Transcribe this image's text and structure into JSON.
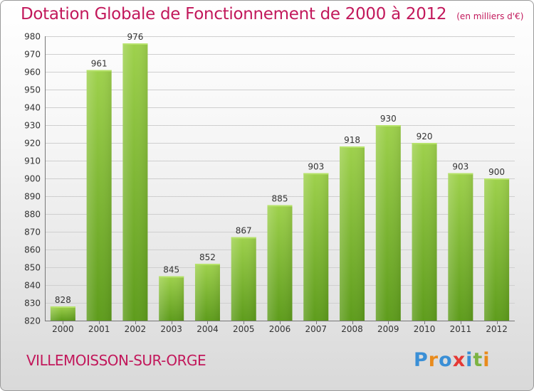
{
  "title": "Dotation Globale de Fonctionnement de 2000 à 2012",
  "subtitle": "(en milliers d'€)",
  "town": "VILLEMOISSON-SUR-ORGE",
  "logo": {
    "text": "Proxiti",
    "colors": [
      "#3a8fd6",
      "#e98b1c",
      "#3a8fd6",
      "#e53935",
      "#3a8fd6",
      "#7cb342",
      "#e98b1c"
    ]
  },
  "colors": {
    "bar_top": "#9ed14c",
    "bar_bottom": "#5e9c1c",
    "accent": "#c2185b"
  },
  "chart_data": {
    "type": "bar",
    "title": "Dotation Globale de Fonctionnement de 2000 à 2012",
    "subtitle": "(en milliers d'€)",
    "categories": [
      "2000",
      "2001",
      "2002",
      "2003",
      "2004",
      "2005",
      "2006",
      "2007",
      "2008",
      "2009",
      "2010",
      "2011",
      "2012"
    ],
    "values": [
      828,
      961,
      976,
      845,
      852,
      867,
      885,
      903,
      918,
      930,
      920,
      903,
      900
    ],
    "ylim": [
      820,
      980
    ],
    "yticks": [
      820,
      830,
      840,
      850,
      860,
      870,
      880,
      890,
      900,
      910,
      920,
      930,
      940,
      950,
      960,
      970,
      980
    ],
    "grid": true,
    "data_labels": true
  }
}
